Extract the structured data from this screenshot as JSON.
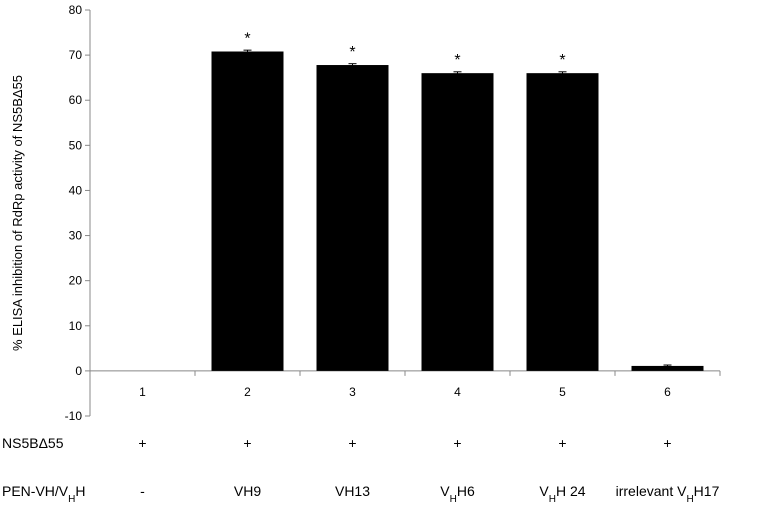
{
  "chart_data": {
    "type": "bar",
    "ylabel": "% ELISA inhibition of RdRp activity of NS5BΔ55",
    "ylim": [
      -10,
      80
    ],
    "ytick_step": 10,
    "grid": false,
    "bar_color": "#000000",
    "categories": [
      "1",
      "2",
      "3",
      "4",
      "5",
      "6"
    ],
    "values": [
      0,
      70.8,
      67.8,
      66.0,
      66.0,
      1.1
    ],
    "errors": [
      0,
      0.3,
      0.3,
      0.3,
      0.3,
      0.2
    ],
    "significance": [
      "",
      "*",
      "*",
      "*",
      "*",
      ""
    ],
    "rows": [
      {
        "label": "NS5BΔ55",
        "cells": [
          "+",
          "+",
          "+",
          "+",
          "+",
          "+"
        ]
      },
      {
        "label_parts": [
          {
            "text": "PEN-VH/V"
          },
          {
            "text": "H",
            "sub": true
          },
          {
            "text": "H"
          }
        ],
        "cells": [
          [
            {
              "text": "-"
            }
          ],
          [
            {
              "text": "VH9"
            }
          ],
          [
            {
              "text": "VH13"
            }
          ],
          [
            {
              "text": "V"
            },
            {
              "text": "H",
              "sub": true
            },
            {
              "text": "H6"
            }
          ],
          [
            {
              "text": "V"
            },
            {
              "text": "H",
              "sub": true
            },
            {
              "text": "H 24"
            }
          ],
          [
            {
              "text": "irrelevant V"
            },
            {
              "text": "H",
              "sub": true
            },
            {
              "text": "H17"
            }
          ]
        ]
      }
    ]
  }
}
